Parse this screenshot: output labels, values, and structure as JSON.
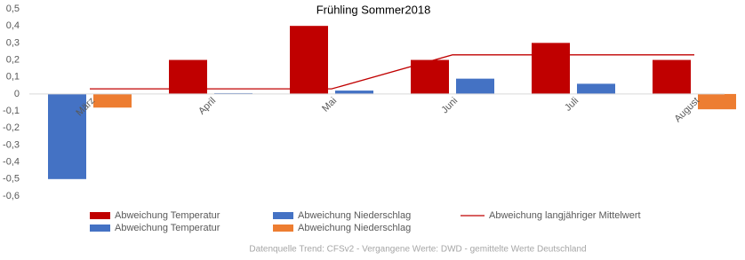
{
  "chart_data": {
    "type": "bar",
    "title": "Frühling Sommer2018",
    "categories": [
      "März",
      "April",
      "Mai",
      "Juni",
      "Juli",
      "August"
    ],
    "series": [
      {
        "name": "Abweichung Temperatur",
        "color": "#c00000",
        "values": [
          null,
          0.2,
          0.4,
          0.2,
          0.3,
          0.2
        ]
      },
      {
        "name": "Abweichung Niederschlag",
        "color": "#4472c4",
        "values": [
          null,
          0.005,
          0.02,
          0.09,
          0.06,
          null
        ]
      },
      {
        "name": "Abweichung langjähriger Mittelwert",
        "color": "#c00000",
        "type": "line",
        "values": [
          0.03,
          0.03,
          0.03,
          0.23,
          0.23,
          0.23
        ]
      },
      {
        "name": "Abweichung Temperatur",
        "color": "#4472c4",
        "values": [
          -0.5,
          null,
          null,
          null,
          null,
          null
        ]
      },
      {
        "name": "Abweichung Niederschlag",
        "color": "#ed7d31",
        "values": [
          -0.08,
          null,
          null,
          null,
          null,
          -0.09
        ]
      }
    ],
    "ylim": [
      -0.6,
      0.5
    ],
    "yticks": [
      {
        "value": -0.6,
        "label": "-0,6"
      },
      {
        "value": -0.5,
        "label": "-0,5"
      },
      {
        "value": -0.4,
        "label": "-0,4"
      },
      {
        "value": -0.3,
        "label": "-0,3"
      },
      {
        "value": -0.2,
        "label": "-0,2"
      },
      {
        "value": -0.1,
        "label": "-0,1"
      },
      0,
      {
        "value": 0.1,
        "label": "0,1"
      },
      {
        "value": 0.2,
        "label": "0,2"
      },
      {
        "value": 0.3,
        "label": "0,3"
      },
      {
        "value": 0.4,
        "label": "0,4"
      },
      {
        "value": 0.5,
        "label": "0,5"
      }
    ],
    "grid": false,
    "footnote": "Datenquelle Trend: CFSv2 - Vergangene Werte: DWD - gemittelte Werte Deutschland"
  }
}
